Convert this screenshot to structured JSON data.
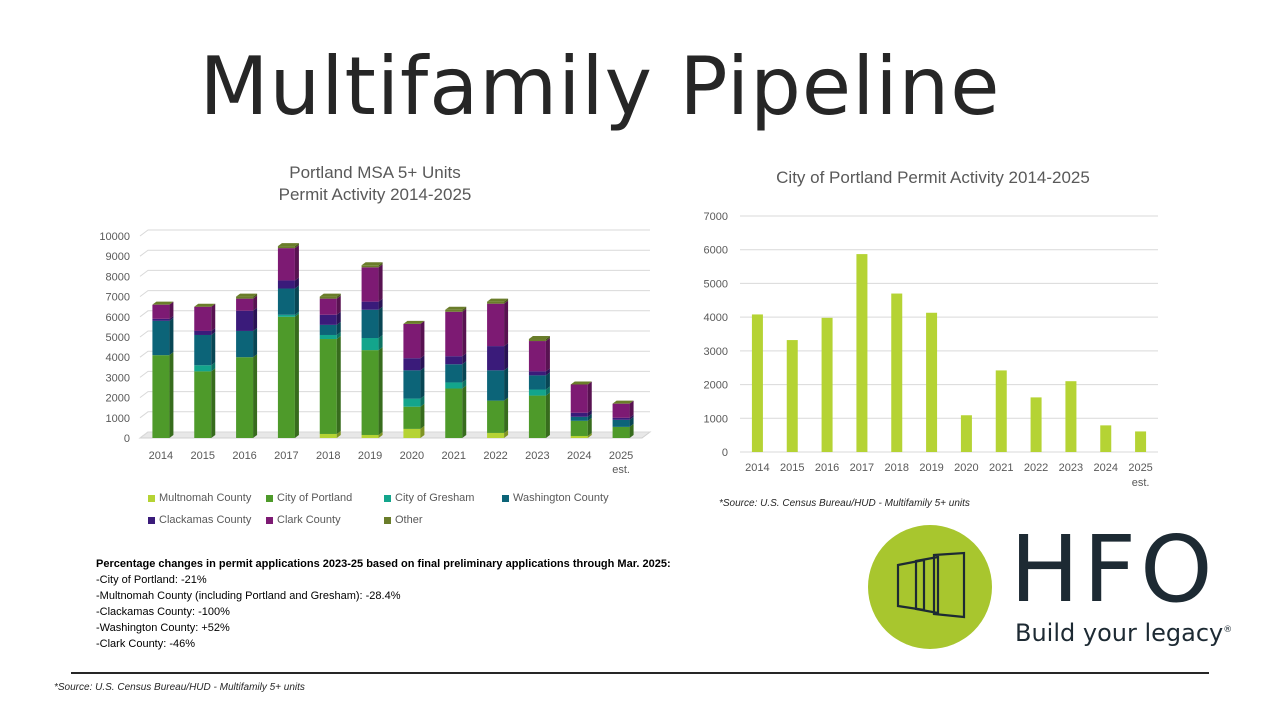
{
  "page": {
    "title": "Multifamily Pipeline",
    "notes_heading": "Percentage changes in permit applications 2023-25 based on final preliminary applications through Mar. 2025:",
    "notes": [
      "-City of Portland: -21%",
      "-Multnomah County (including Portland and Gresham): -28.4%",
      "-Clackamas County: -100%",
      "-Washington County: +52%",
      "-Clark County: -46%"
    ],
    "source_right": "*Source: U.S. Census Bureau/HUD - Multifamily 5+ units",
    "source_bottom": "*Source: U.S. Census Bureau/HUD - Multifamily 5+ units",
    "logo_text": "HFO",
    "logo_tagline": "Build your legacy",
    "logo_mark": "®",
    "colors": {
      "accent": "#a8c62e",
      "logo_dark": "#1d2a33"
    }
  },
  "chart_data": [
    {
      "type": "bar",
      "stacked": true,
      "title": "Portland MSA 5+ Units",
      "subtitle": "Permit Activity 2014-2025",
      "categories": [
        "2014",
        "2015",
        "2016",
        "2017",
        "2018",
        "2019",
        "2020",
        "2021",
        "2022",
        "2023",
        "2024",
        "2025"
      ],
      "category_sublabels": [
        "",
        "",
        "",
        "",
        "",
        "",
        "",
        "",
        "",
        "",
        "",
        "est."
      ],
      "ylim": [
        0,
        10000
      ],
      "yticks": [
        0,
        1000,
        2000,
        3000,
        4000,
        5000,
        6000,
        7000,
        8000,
        9000,
        10000
      ],
      "grid": true,
      "legend_position": "bottom",
      "series": [
        {
          "name": "Multnomah County",
          "color": "#b5d334",
          "values": [
            0,
            0,
            0,
            0,
            200,
            150,
            450,
            0,
            250,
            0,
            100,
            0
          ]
        },
        {
          "name": "City of Portland",
          "color": "#4e9a2a",
          "values": [
            4100,
            3300,
            4000,
            6000,
            4700,
            4200,
            1100,
            2450,
            1600,
            2100,
            750,
            550
          ]
        },
        {
          "name": "City of Gresham",
          "color": "#13a58c",
          "values": [
            0,
            300,
            0,
            100,
            200,
            600,
            400,
            300,
            0,
            300,
            0,
            0
          ]
        },
        {
          "name": "Washington County",
          "color": "#0c6478",
          "values": [
            1700,
            1500,
            1300,
            1300,
            500,
            1400,
            1400,
            900,
            1500,
            700,
            200,
            350
          ]
        },
        {
          "name": "Clackamas County",
          "color": "#3a1b7a",
          "values": [
            100,
            200,
            1000,
            400,
            500,
            400,
            600,
            400,
            1200,
            200,
            200,
            100
          ]
        },
        {
          "name": "Clark County",
          "color": "#7d1a73",
          "values": [
            700,
            1200,
            600,
            1600,
            800,
            1700,
            1700,
            2200,
            2100,
            1500,
            1400,
            700
          ]
        },
        {
          "name": "Other",
          "color": "#6a7d2a",
          "values": [
            0,
            0,
            100,
            100,
            100,
            100,
            0,
            100,
            100,
            100,
            0,
            0
          ]
        }
      ]
    },
    {
      "type": "bar",
      "title": "City of Portland Permit Activity 2014-2025",
      "categories": [
        "2014",
        "2015",
        "2016",
        "2017",
        "2018",
        "2019",
        "2020",
        "2021",
        "2022",
        "2023",
        "2024",
        "2025"
      ],
      "category_sublabels": [
        "",
        "",
        "",
        "",
        "",
        "",
        "",
        "",
        "",
        "",
        "",
        "est."
      ],
      "values": [
        4080,
        3320,
        3980,
        5870,
        4700,
        4130,
        1090,
        2420,
        1620,
        2100,
        790,
        610
      ],
      "color": "#b5d334",
      "ylim": [
        0,
        7000
      ],
      "yticks": [
        0,
        1000,
        2000,
        3000,
        4000,
        5000,
        6000,
        7000
      ],
      "grid": true
    }
  ]
}
